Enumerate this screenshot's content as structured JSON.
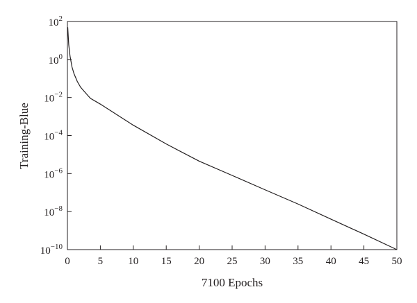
{
  "chart_data": {
    "type": "line",
    "title": "",
    "xlabel": "7100 Epochs",
    "ylabel": "Training-Blue",
    "xlim": [
      0,
      50
    ],
    "ylim": [
      1e-10,
      100
    ],
    "yscale": "log",
    "grid": false,
    "x_ticks": [
      0,
      5,
      10,
      15,
      20,
      25,
      30,
      35,
      40,
      45,
      50
    ],
    "y_ticks": [
      {
        "value": 100,
        "base": "10",
        "exp": "2"
      },
      {
        "value": 1,
        "base": "10",
        "exp": "0"
      },
      {
        "value": 0.01,
        "base": "10",
        "exp": "−2"
      },
      {
        "value": 0.0001,
        "base": "10",
        "exp": "−4"
      },
      {
        "value": 1e-06,
        "base": "10",
        "exp": "−6"
      },
      {
        "value": 1e-08,
        "base": "10",
        "exp": "−8"
      },
      {
        "value": 1e-10,
        "base": "10",
        "exp": "−10"
      }
    ],
    "series": [
      {
        "x": [
          0.05,
          0.2,
          0.4,
          0.7,
          1.0,
          1.5,
          2.0,
          2.5,
          3.0,
          3.5,
          5,
          10,
          15,
          20,
          25,
          30,
          35,
          40,
          45,
          50
        ],
        "y": [
          50,
          6,
          1.5,
          0.4,
          0.18,
          0.07,
          0.035,
          0.022,
          0.014,
          0.009,
          0.0045,
          0.00035,
          3.6e-05,
          4.5e-06,
          8e-07,
          1.4e-07,
          2.5e-08,
          4e-09,
          6.5e-10,
          1e-10
        ]
      }
    ]
  }
}
